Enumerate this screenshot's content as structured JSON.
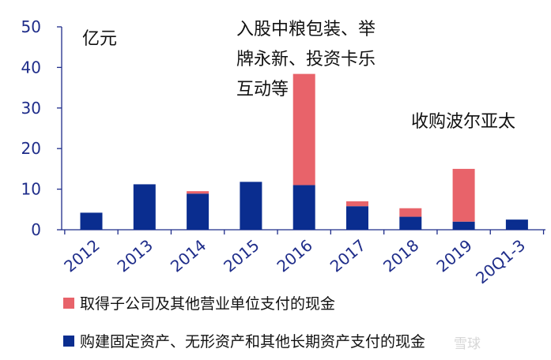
{
  "chart_data": {
    "type": "bar",
    "stacked": true,
    "categories": [
      "2012",
      "2013",
      "2014",
      "2015",
      "2016",
      "2017",
      "2018",
      "2019",
      "20Q1-3"
    ],
    "series": [
      {
        "name": "购建固定资产、无形资产和其他长期资产支付的现金",
        "color": "#0a2d8f",
        "values": [
          4.2,
          11.2,
          8.9,
          11.8,
          11.0,
          5.8,
          3.2,
          2.0,
          2.5
        ]
      },
      {
        "name": "取得子公司及其他营业单位支付的现金",
        "color": "#e8636a",
        "values": [
          0,
          0,
          0.6,
          0,
          27.4,
          1.2,
          2.1,
          13.0,
          0
        ]
      }
    ],
    "unit_label": "亿元",
    "ylim": [
      0,
      50
    ],
    "yticks": [
      0,
      10,
      20,
      30,
      40,
      50
    ],
    "annotations": [
      {
        "category": "2016",
        "lines": [
          "入股中粮包装、举",
          "牌永新、投资卡乐",
          "互动等"
        ]
      },
      {
        "category": "2019",
        "lines": [
          "收购波尔亚太"
        ]
      }
    ],
    "legend_position": "bottom",
    "grid": false
  },
  "watermark": "雪球"
}
